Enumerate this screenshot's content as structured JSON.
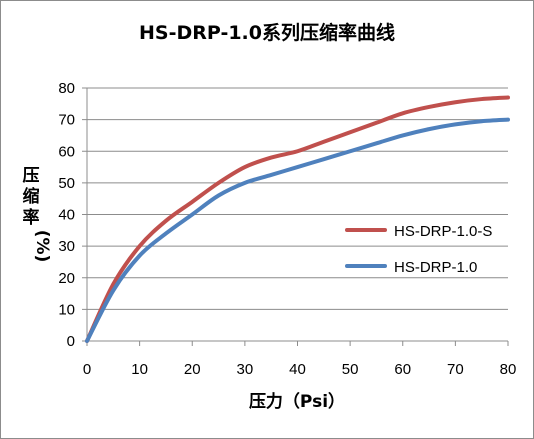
{
  "chart_data": {
    "type": "line",
    "title": "HS-DRP-1.0系列压缩率曲线",
    "xlabel": "压力（Psi）",
    "ylabel_chars": [
      "压",
      "缩",
      "率",
      "(%)"
    ],
    "xlim": [
      0,
      80
    ],
    "ylim": [
      0,
      80
    ],
    "x_ticks": [
      0,
      10,
      20,
      30,
      40,
      50,
      60,
      70,
      80
    ],
    "y_ticks": [
      0,
      10,
      20,
      30,
      40,
      50,
      60,
      70,
      80
    ],
    "grid": true,
    "legend_position": "right",
    "series": [
      {
        "name": "HS-DRP-1.0-S",
        "color": "#c0504d",
        "x": [
          0,
          5,
          10,
          15,
          20,
          25,
          30,
          35,
          40,
          45,
          50,
          55,
          60,
          65,
          70,
          75,
          80
        ],
        "y": [
          0,
          18,
          30,
          38,
          44,
          50,
          55,
          58,
          60,
          63,
          66,
          69,
          72,
          74,
          75.5,
          76.5,
          77
        ]
      },
      {
        "name": "HS-DRP-1.0",
        "color": "#4f81bd",
        "x": [
          0,
          5,
          10,
          15,
          20,
          25,
          30,
          35,
          40,
          45,
          50,
          55,
          60,
          65,
          70,
          75,
          80
        ],
        "y": [
          0,
          16,
          27,
          34,
          40,
          46,
          50,
          52.5,
          55,
          57.5,
          60,
          62.5,
          65,
          67,
          68.5,
          69.5,
          70
        ]
      }
    ]
  }
}
